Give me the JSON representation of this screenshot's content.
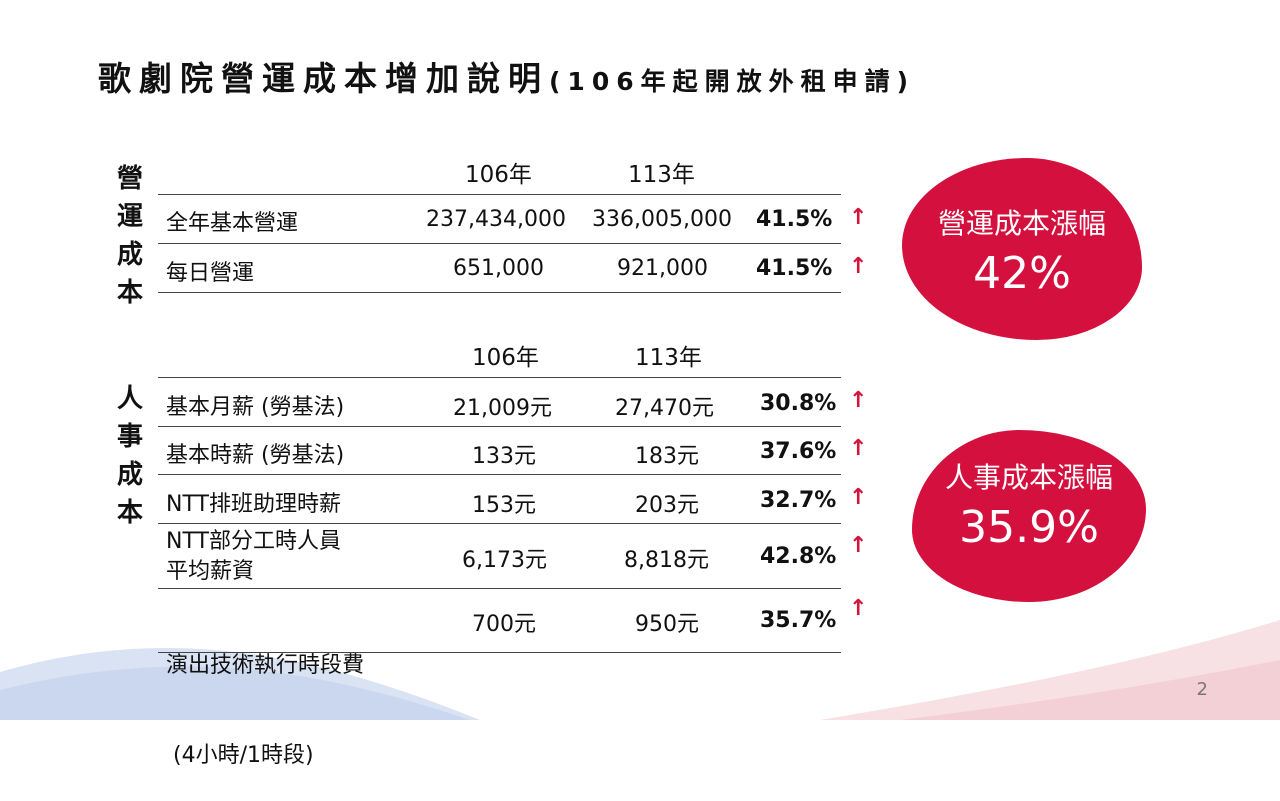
{
  "title": {
    "main": "歌劇院營運成本增加說明",
    "sub": "(106年起開放外租申請)"
  },
  "operating": {
    "label": [
      "營",
      "運",
      "成",
      "本"
    ],
    "years": [
      "106年",
      "113年"
    ],
    "rows": [
      {
        "name": "全年基本營運",
        "v106": "237,434,000",
        "v113": "336,005,000",
        "pct": "41.5%"
      },
      {
        "name": "每日營運",
        "v106": "651,000",
        "v113": "921,000",
        "pct": "41.5%"
      }
    ],
    "badge": {
      "label": "營運成本漲幅",
      "value": "42%"
    }
  },
  "personnel": {
    "label": [
      "人",
      "事",
      "成",
      "本"
    ],
    "years": [
      "106年",
      "113年"
    ],
    "rows": [
      {
        "name": "基本月薪 (勞基法)",
        "v106": "21,009元",
        "v113": "27,470元",
        "pct": "30.8%"
      },
      {
        "name": "基本時薪 (勞基法)",
        "v106": "133元",
        "v113": "183元",
        "pct": "37.6%"
      },
      {
        "name": "NTT排班助理時薪",
        "v106": "153元",
        "v113": "203元",
        "pct": "32.7%"
      },
      {
        "name1": "NTT部分工時人員",
        "name2": "平均薪資",
        "v106": "6,173元",
        "v113": "8,818元",
        "pct": "42.8%"
      },
      {
        "name1": "演出技術執行時段費",
        "name2": " (4小時/1時段)",
        "v106": "700元",
        "v113": "950元",
        "pct": "35.7%"
      }
    ],
    "badge": {
      "label": "人事成本漲幅",
      "value": "35.9%"
    }
  },
  "arrow_symbol": "↑",
  "page_number": "2",
  "colors": {
    "accent": "#d4103e",
    "wave_blue": "#c9d6ec",
    "wave_pink": "#f6dadd"
  }
}
